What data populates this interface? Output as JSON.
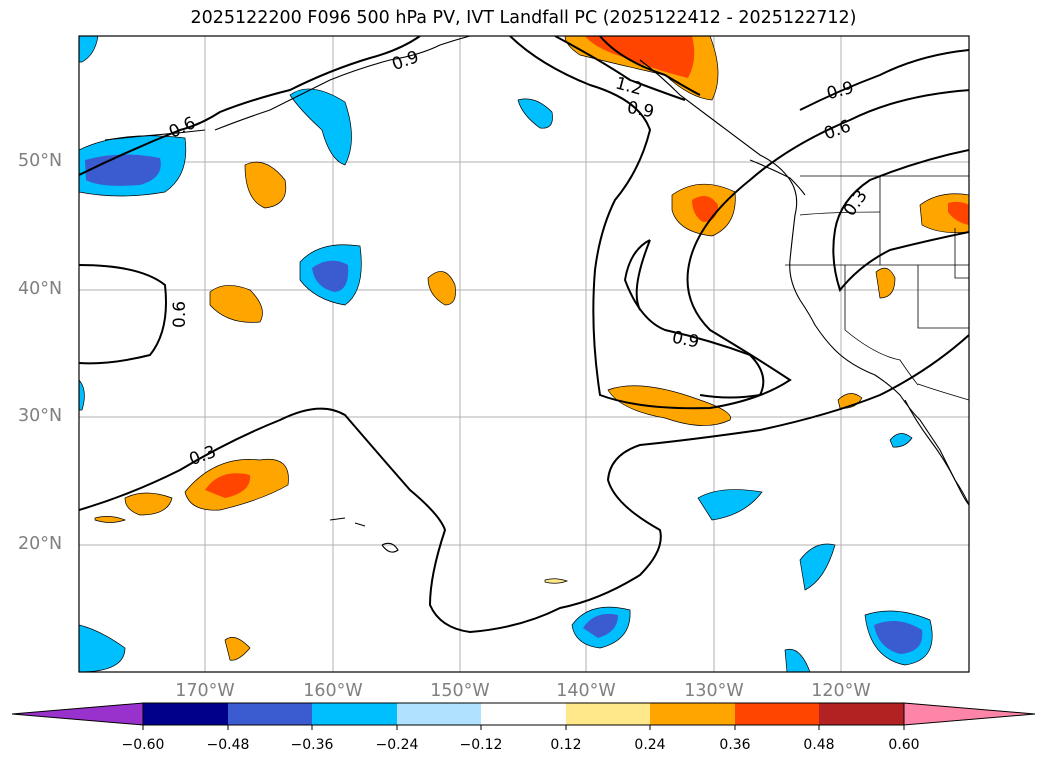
{
  "title": "2025122200 F096 500 hPa PV, IVT Landfall PC (2025122412 - 2025122712)",
  "lat_labels": [
    "50°N",
    "40°N",
    "30°N",
    "20°N"
  ],
  "lon_labels": [
    "170°W",
    "160°W",
    "150°W",
    "140°W",
    "130°W",
    "120°W"
  ],
  "contour_labels": [
    "0.6",
    "0.9",
    "1.2",
    "0.9",
    "0.9",
    "0.6",
    "0.3",
    "0.6",
    "0.9",
    "0.3"
  ],
  "colorbar": {
    "ticks": [
      "−0.60",
      "−0.48",
      "−0.36",
      "−0.24",
      "−0.12",
      "0.12",
      "0.24",
      "0.36",
      "0.48",
      "0.60"
    ],
    "colors": [
      "#9932cc",
      "#00008b",
      "#3b5bd0",
      "#00bfff",
      "#b0e2ff",
      "#ffffff",
      "#ffe88a",
      "#ffa500",
      "#ff4500",
      "#b22222",
      "#ff85a8"
    ]
  },
  "colors": {
    "grid": "#b0b0b0",
    "axis_label": "#808080",
    "coast": "#000000"
  }
}
